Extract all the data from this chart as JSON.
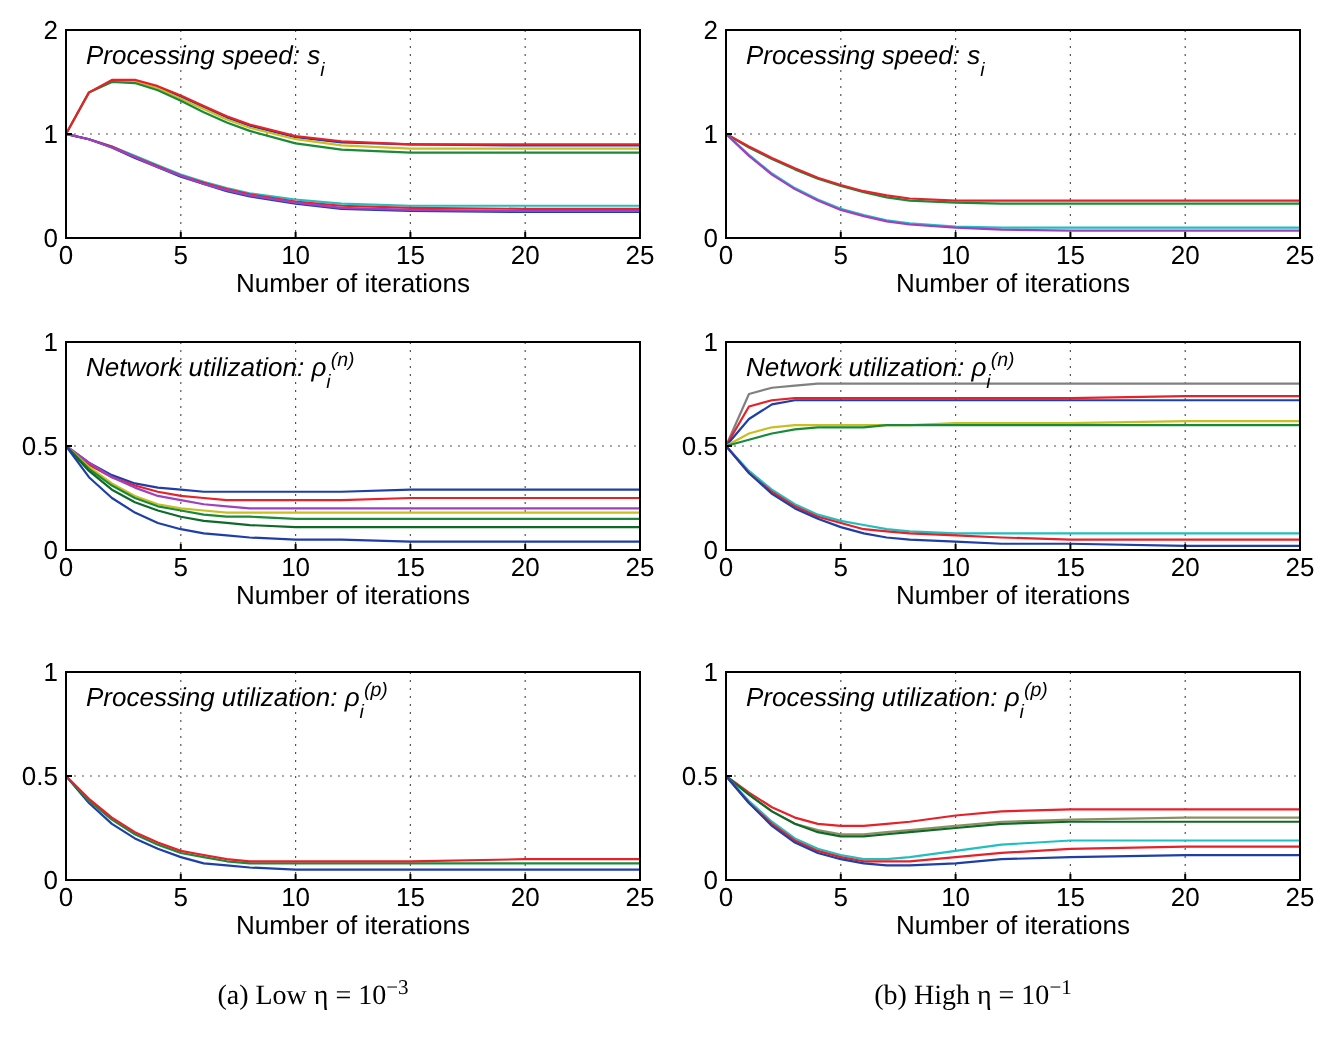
{
  "chart_data": [
    {
      "type": "line",
      "title": "Processing speed: s$_{i}$",
      "xlabel": "Number of iterations",
      "x": [
        0,
        1,
        2,
        3,
        4,
        5,
        6,
        7,
        8,
        10,
        12,
        15,
        20,
        25
      ],
      "xlim": [
        0,
        25
      ],
      "xticks": [
        0,
        5,
        10,
        15,
        20,
        25
      ],
      "ylim": [
        0,
        2
      ],
      "yticks": [
        0,
        1,
        2
      ],
      "grid": true,
      "line_style": "solid",
      "marker": "none",
      "series": [
        {
          "color": "#1f3fa8",
          "values": [
            null,
            null,
            null,
            null,
            1.45,
            1.36,
            1.26,
            1.16,
            1.08,
            0.97,
            0.92,
            0.9,
            0.89,
            0.89
          ]
        },
        {
          "color": "#c8c020",
          "values": [
            null,
            null,
            1.51,
            1.5,
            1.44,
            1.34,
            1.24,
            1.14,
            1.06,
            0.95,
            0.89,
            0.86,
            0.86,
            0.86
          ]
        },
        {
          "color": "#1a8a3a",
          "values": [
            1,
            1.4,
            1.5,
            1.49,
            1.42,
            1.32,
            1.21,
            1.11,
            1.03,
            0.91,
            0.85,
            0.82,
            0.82,
            0.82
          ]
        },
        {
          "color": "#e8202a",
          "values": [
            1,
            1.4,
            1.52,
            1.52,
            1.46,
            1.37,
            1.27,
            1.17,
            1.09,
            0.98,
            0.93,
            0.9,
            0.9,
            0.9
          ]
        },
        {
          "color": "#20c0c0",
          "values": [
            1,
            0.95,
            0.88,
            0.79,
            0.7,
            0.61,
            0.54,
            0.48,
            0.43,
            0.37,
            0.33,
            0.31,
            0.31,
            0.31
          ]
        },
        {
          "color": "#e8202a",
          "values": [
            1,
            0.95,
            0.88,
            0.78,
            0.69,
            0.6,
            0.53,
            0.47,
            0.42,
            0.35,
            0.31,
            0.29,
            0.28,
            0.28
          ]
        },
        {
          "color": "#1f3fa8",
          "values": [
            1,
            0.95,
            0.87,
            0.77,
            0.68,
            0.59,
            0.52,
            0.45,
            0.4,
            0.33,
            0.28,
            0.26,
            0.25,
            0.25
          ]
        },
        {
          "color": "#a040c0",
          "values": [
            1,
            0.95,
            0.87,
            0.78,
            0.68,
            0.6,
            0.52,
            0.46,
            0.41,
            0.34,
            0.29,
            0.27,
            0.26,
            0.26
          ]
        }
      ]
    },
    {
      "type": "line",
      "title": "Processing speed: s$_{i}$",
      "xlabel": "Number of iterations",
      "x": [
        0,
        1,
        2,
        3,
        4,
        5,
        6,
        7,
        8,
        10,
        12,
        15,
        20,
        25
      ],
      "xlim": [
        0,
        25
      ],
      "xticks": [
        0,
        5,
        10,
        15,
        20,
        25
      ],
      "ylim": [
        0,
        2
      ],
      "yticks": [
        0,
        1,
        2
      ],
      "grid": true,
      "line_style": "solid",
      "marker": "none",
      "series": [
        {
          "color": "#1a8a3a",
          "values": [
            1,
            0.87,
            0.76,
            0.66,
            0.57,
            0.5,
            0.44,
            0.39,
            0.36,
            0.34,
            0.33,
            0.33,
            0.33,
            0.33
          ]
        },
        {
          "color": "#e8202a",
          "values": [
            1,
            0.88,
            0.77,
            0.67,
            0.58,
            0.51,
            0.45,
            0.41,
            0.38,
            0.36,
            0.36,
            0.36,
            0.36,
            0.36
          ]
        },
        {
          "color": "#20c0c0",
          "values": [
            1,
            0.8,
            0.62,
            0.48,
            0.37,
            0.28,
            0.22,
            0.17,
            0.14,
            0.11,
            0.1,
            0.1,
            0.1,
            0.1
          ]
        },
        {
          "color": "#a040c0",
          "values": [
            1,
            0.79,
            0.61,
            0.47,
            0.36,
            0.27,
            0.21,
            0.16,
            0.13,
            0.1,
            0.08,
            0.07,
            0.07,
            0.07
          ]
        }
      ]
    },
    {
      "type": "line",
      "title": "Network utilization: ρ$_{i}$$^{(n)}$",
      "xlabel": "Number of iterations",
      "x": [
        0,
        1,
        2,
        3,
        4,
        5,
        6,
        7,
        8,
        10,
        12,
        15,
        20,
        25
      ],
      "xlim": [
        0,
        25
      ],
      "xticks": [
        0,
        5,
        10,
        15,
        20,
        25
      ],
      "ylim": [
        0,
        1
      ],
      "yticks": [
        0,
        0.5,
        1
      ],
      "grid": true,
      "line_style": "solid",
      "marker": "none",
      "series": [
        {
          "color": "#1f3fa8",
          "values": [
            0.5,
            0.42,
            0.36,
            0.32,
            0.3,
            0.29,
            0.28,
            0.28,
            0.28,
            0.28,
            0.28,
            0.29,
            0.29,
            0.29
          ]
        },
        {
          "color": "#e8202a",
          "values": [
            0.5,
            0.41,
            0.35,
            0.31,
            0.28,
            0.26,
            0.25,
            0.24,
            0.24,
            0.24,
            0.24,
            0.25,
            0.25,
            0.25
          ]
        },
        {
          "color": "#a040c0",
          "values": [
            0.5,
            0.42,
            0.35,
            0.3,
            0.26,
            0.24,
            0.22,
            0.21,
            0.2,
            0.2,
            0.2,
            0.2,
            0.2,
            0.2
          ]
        },
        {
          "color": "#c8c020",
          "values": [
            0.5,
            0.4,
            0.32,
            0.26,
            0.22,
            0.2,
            0.19,
            0.18,
            0.18,
            0.18,
            0.18,
            0.18,
            0.18,
            0.18
          ]
        },
        {
          "color": "#1a8a3a",
          "values": [
            0.5,
            0.39,
            0.31,
            0.25,
            0.21,
            0.19,
            0.17,
            0.16,
            0.16,
            0.15,
            0.15,
            0.15,
            0.15,
            0.15
          ]
        },
        {
          "color": "#0f6a2a",
          "values": [
            0.5,
            0.38,
            0.29,
            0.23,
            0.19,
            0.16,
            0.14,
            0.13,
            0.12,
            0.11,
            0.11,
            0.11,
            0.11,
            0.11
          ]
        },
        {
          "color": "#1f3fa8",
          "values": [
            0.5,
            0.35,
            0.25,
            0.18,
            0.13,
            0.1,
            0.08,
            0.07,
            0.06,
            0.05,
            0.05,
            0.04,
            0.04,
            0.04
          ]
        }
      ]
    },
    {
      "type": "line",
      "title": "Network utilization: ρ$_{i}$$^{(n)}$",
      "xlabel": "Number of iterations",
      "x": [
        0,
        1,
        2,
        3,
        4,
        5,
        6,
        7,
        8,
        10,
        12,
        15,
        20,
        25
      ],
      "xlim": [
        0,
        25
      ],
      "xticks": [
        0,
        5,
        10,
        15,
        20,
        25
      ],
      "ylim": [
        0,
        1
      ],
      "yticks": [
        0,
        0.5,
        1
      ],
      "grid": true,
      "line_style": "solid",
      "marker": "none",
      "series": [
        {
          "color": "#808080",
          "values": [
            0.5,
            0.75,
            0.78,
            0.79,
            0.8,
            0.8,
            0.8,
            0.8,
            0.8,
            0.8,
            0.8,
            0.8,
            0.8,
            0.8
          ]
        },
        {
          "color": "#e8202a",
          "values": [
            0.5,
            0.69,
            0.72,
            0.73,
            0.73,
            0.73,
            0.73,
            0.73,
            0.73,
            0.73,
            0.73,
            0.73,
            0.74,
            0.74
          ]
        },
        {
          "color": "#1f3fa8",
          "values": [
            0.5,
            0.63,
            0.7,
            0.72,
            0.72,
            0.72,
            0.72,
            0.72,
            0.72,
            0.72,
            0.72,
            0.72,
            0.72,
            0.72
          ]
        },
        {
          "color": "#c8c020",
          "values": [
            0.5,
            0.56,
            0.59,
            0.6,
            0.6,
            0.6,
            0.6,
            0.6,
            0.6,
            0.61,
            0.61,
            0.61,
            0.62,
            0.62
          ]
        },
        {
          "color": "#1a8a3a",
          "values": [
            0.5,
            0.53,
            0.56,
            0.58,
            0.59,
            0.59,
            0.59,
            0.6,
            0.6,
            0.6,
            0.6,
            0.6,
            0.6,
            0.6
          ]
        },
        {
          "color": "#20c0c0",
          "values": [
            0.5,
            0.38,
            0.29,
            0.22,
            0.17,
            0.14,
            0.12,
            0.1,
            0.09,
            0.08,
            0.08,
            0.08,
            0.08,
            0.08
          ]
        },
        {
          "color": "#e8202a",
          "values": [
            0.5,
            0.37,
            0.28,
            0.21,
            0.16,
            0.13,
            0.1,
            0.09,
            0.08,
            0.07,
            0.06,
            0.05,
            0.05,
            0.05
          ]
        },
        {
          "color": "#1f3fa8",
          "values": [
            0.5,
            0.37,
            0.27,
            0.2,
            0.15,
            0.11,
            0.08,
            0.06,
            0.05,
            0.04,
            0.03,
            0.03,
            0.02,
            0.02
          ]
        }
      ]
    },
    {
      "type": "line",
      "title": "Processing utilization: ρ$_{i}$$^{(p)}$",
      "xlabel": "Number of iterations",
      "annotations": [
        "(a) Low η = 10$^{−3}$"
      ],
      "x": [
        0,
        1,
        2,
        3,
        4,
        5,
        6,
        7,
        8,
        10,
        12,
        15,
        20,
        25
      ],
      "xlim": [
        0,
        25
      ],
      "xticks": [
        0,
        5,
        10,
        15,
        20,
        25
      ],
      "ylim": [
        0,
        1
      ],
      "yticks": [
        0,
        0.5,
        1
      ],
      "grid": true,
      "line_style": "solid",
      "marker": "none",
      "series": [
        {
          "color": "#1f3fa8",
          "values": [
            0.5,
            0.37,
            0.27,
            0.2,
            0.15,
            0.11,
            0.08,
            0.07,
            0.06,
            0.05,
            0.05,
            0.05,
            0.05,
            0.05
          ]
        },
        {
          "color": "#1a8a3a",
          "values": [
            0.5,
            0.38,
            0.29,
            0.22,
            0.17,
            0.13,
            0.11,
            0.09,
            0.08,
            0.08,
            0.08,
            0.08,
            0.08,
            0.08
          ]
        },
        {
          "color": "#e8202a",
          "values": [
            0.5,
            0.39,
            0.3,
            0.23,
            0.18,
            0.14,
            0.12,
            0.1,
            0.09,
            0.09,
            0.09,
            0.09,
            0.1,
            0.1
          ]
        }
      ]
    },
    {
      "type": "line",
      "title": "Processing utilization: ρ$_{i}$$^{(p)}$",
      "xlabel": "Number of iterations",
      "annotations": [
        "(b) High η = 10$^{−1}$"
      ],
      "x": [
        0,
        1,
        2,
        3,
        4,
        5,
        6,
        7,
        8,
        10,
        12,
        15,
        20,
        25
      ],
      "xlim": [
        0,
        25
      ],
      "xticks": [
        0,
        5,
        10,
        15,
        20,
        25
      ],
      "ylim": [
        0,
        1
      ],
      "yticks": [
        0,
        0.5,
        1
      ],
      "grid": true,
      "line_style": "solid",
      "marker": "none",
      "series": [
        {
          "color": "#e8202a",
          "values": [
            0.5,
            0.42,
            0.35,
            0.3,
            0.27,
            0.26,
            0.26,
            0.27,
            0.28,
            0.31,
            0.33,
            0.34,
            0.34,
            0.34
          ]
        },
        {
          "color": "#8a9060",
          "values": [
            0.5,
            0.41,
            0.33,
            0.27,
            0.24,
            0.22,
            0.22,
            0.23,
            0.24,
            0.26,
            0.28,
            0.29,
            0.3,
            0.3
          ]
        },
        {
          "color": "#0f6a2a",
          "values": [
            0.5,
            0.41,
            0.33,
            0.27,
            0.23,
            0.21,
            0.21,
            0.22,
            0.23,
            0.25,
            0.27,
            0.28,
            0.28,
            0.28
          ]
        },
        {
          "color": "#20c0c0",
          "values": [
            0.5,
            0.38,
            0.28,
            0.2,
            0.15,
            0.12,
            0.1,
            0.1,
            0.11,
            0.14,
            0.17,
            0.19,
            0.19,
            0.19
          ]
        },
        {
          "color": "#e8202a",
          "values": [
            0.5,
            0.37,
            0.27,
            0.19,
            0.14,
            0.11,
            0.09,
            0.09,
            0.09,
            0.11,
            0.13,
            0.15,
            0.16,
            0.16
          ]
        },
        {
          "color": "#1f3fa8",
          "values": [
            0.5,
            0.37,
            0.26,
            0.18,
            0.13,
            0.1,
            0.08,
            0.07,
            0.07,
            0.08,
            0.1,
            0.11,
            0.12,
            0.12
          ]
        }
      ]
    }
  ]
}
